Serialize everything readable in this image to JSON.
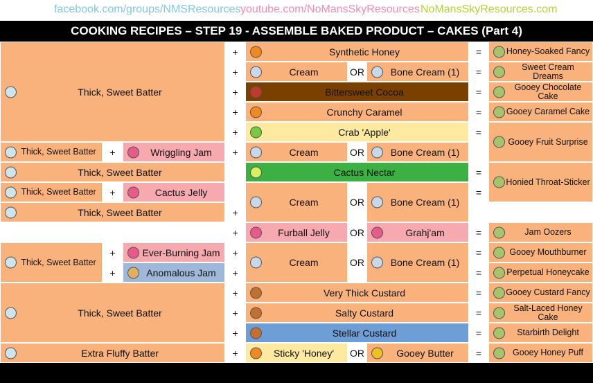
{
  "header": {
    "links": [
      "facebook.com/groups/NMSResources",
      "youtube.com/NoMansSkyResources",
      "NoMansSkyResources.com"
    ],
    "title": "COOKING RECIPES – STEP 19 - ASSEMBLE BAKED PRODUCT – CAKES (Part 4)"
  },
  "symbols": {
    "plus": "+",
    "or": "OR",
    "equals": "="
  },
  "left": [
    "Thick, Sweet Batter",
    "Thick, Sweet Batter",
    "Thick, Sweet Batter",
    "Thick, Sweet Batter",
    "Thick, Sweet Batter",
    "Thick, Sweet Batter",
    "Thick, Sweet Batter",
    "Extra Fluffy Batter"
  ],
  "left_extras": [
    "Wriggling Jam",
    "Cactus Jelly",
    "Ever-Burning Jam",
    "Anomalous Jam"
  ],
  "middle": [
    {
      "text": "Synthetic Honey"
    },
    {
      "left": "Cream",
      "right": "Bone Cream (1)"
    },
    {
      "text": "Bittersweet Cocoa"
    },
    {
      "text": "Crunchy Caramel"
    },
    {
      "text": "Crab 'Apple'"
    },
    {
      "left": "Cream",
      "right": "Bone Cream (1)"
    },
    {
      "text": "Cactus Nectar"
    },
    {
      "left": "Cream",
      "right": "Bone Cream (1)"
    },
    {
      "left": "Furball Jelly",
      "right": "Grahj'am"
    },
    {
      "left": "Cream",
      "right": "Bone Cream (1)"
    },
    {
      "text": "Very Thick Custard"
    },
    {
      "text": "Salty Custard"
    },
    {
      "text": "Stellar Custard"
    },
    {
      "left": "Sticky 'Honey'",
      "right": "Gooey Butter"
    }
  ],
  "results": [
    "Honey-Soaked Fancy",
    "Sweet Cream Dreams",
    "Gooey Chocolate Cake",
    "Gooey Caramel Cake",
    "Gooey Fruit Surprise",
    "Honied Throat-Sticker",
    "Jam Oozers",
    "Gooey Mouthburner",
    "Perpetual Honeycake",
    "Gooey Custard Fancy",
    "Salt-Laced Honey Cake",
    "Starbirth Delight",
    "Gooey Honey Puff"
  ]
}
